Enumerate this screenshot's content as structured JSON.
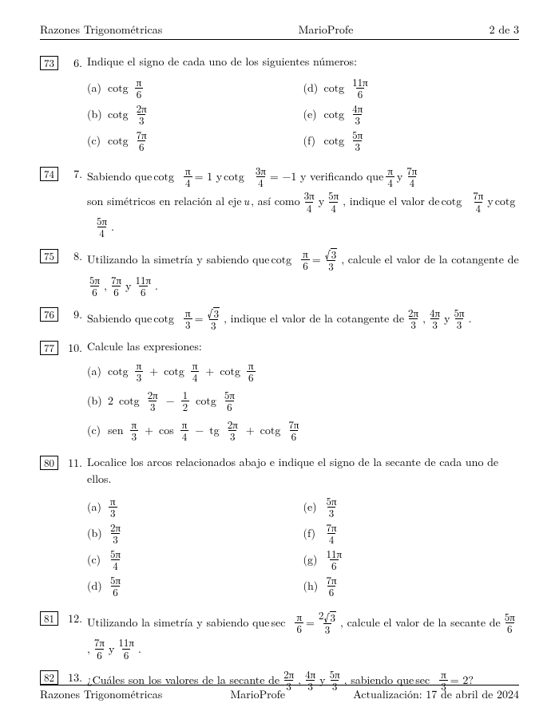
{
  "header": {
    "left": "Razones Trigonométricas",
    "center": "MarioProfe",
    "right": "2 de 3"
  },
  "footer": {
    "left": "Razones Trigonométricas",
    "center": "MarioProfe",
    "right": "Actualización: 17 de abril de 2024"
  },
  "labels": {
    "cotg": "cotg",
    "sec": "sec",
    "sen": "sen",
    "cos": "cos",
    "tg": "tg",
    "pi": "π"
  },
  "problems": [
    {
      "tag": "73",
      "num": "6.",
      "text_pre": "Indique el signo de cada uno de los siguientes números:",
      "cols": [
        [
          {
            "l": "(a)",
            "op": "cotg",
            "n": "π",
            "d": "6"
          },
          {
            "l": "(b)",
            "op": "cotg",
            "n": "2π",
            "d": "3"
          },
          {
            "l": "(c)",
            "op": "cotg",
            "n": "7π",
            "d": "6"
          }
        ],
        [
          {
            "l": "(d)",
            "op": "cotg",
            "n": "11π",
            "d": "6"
          },
          {
            "l": "(e)",
            "op": "cotg",
            "n": "4π",
            "d": "3"
          },
          {
            "l": "(f)",
            "op": "cotg",
            "n": "5π",
            "d": "3"
          }
        ]
      ]
    },
    {
      "tag": "74",
      "num": "7.",
      "parts": {
        "p1": "Sabiendo que ",
        "p2": " = 1 y ",
        "p3": " = −1 y verificando que ",
        "p4": " y ",
        "p5": " son simétricos en relación al eje ",
        "u": "u",
        "p6": ", así como ",
        "p7": " y ",
        "p8": ", indique el valor de ",
        "p9": " y ",
        "p10": "."
      },
      "fr": {
        "a": {
          "n": "π",
          "d": "4"
        },
        "b": {
          "n": "3π",
          "d": "4"
        },
        "c": {
          "n": "π",
          "d": "4"
        },
        "d": {
          "n": "7π",
          "d": "4"
        },
        "e": {
          "n": "3π",
          "d": "4"
        },
        "f": {
          "n": "5π",
          "d": "4"
        },
        "g": {
          "n": "7π",
          "d": "4"
        },
        "h": {
          "n": "5π",
          "d": "4"
        }
      }
    },
    {
      "tag": "75",
      "num": "8.",
      "parts": {
        "p1": "Utilizando la simetría y sabiendo que ",
        "p2": " = ",
        "p3": ", calcule el valor de la cotangente de ",
        "p4": ", ",
        "p5": " y ",
        "p6": "."
      },
      "f1": {
        "n": "π",
        "d": "6"
      },
      "rhs": {
        "sqrt": "3",
        "d": "3"
      },
      "list": [
        {
          "n": "5π",
          "d": "6"
        },
        {
          "n": "7π",
          "d": "6"
        },
        {
          "n": "11π",
          "d": "6"
        }
      ]
    },
    {
      "tag": "76",
      "num": "9.",
      "parts": {
        "p1": "Sabiendo que ",
        "p2": " = ",
        "p3": ", indique el valor de la cotangente de ",
        "p4": ", ",
        "p5": " y ",
        "p6": "."
      },
      "f1": {
        "n": "π",
        "d": "3"
      },
      "rhs": {
        "sqrt": "3",
        "d": "3"
      },
      "list": [
        {
          "n": "2π",
          "d": "3"
        },
        {
          "n": "4π",
          "d": "3"
        },
        {
          "n": "5π",
          "d": "3"
        }
      ]
    },
    {
      "tag": "77",
      "num": "10.",
      "text_pre": "Calcule las expresiones:",
      "subs": [
        {
          "l": "(a)",
          "expr": [
            [
              "cotg",
              "π",
              "3"
            ],
            [
              "+"
            ],
            [
              "cotg",
              "π",
              "4"
            ],
            [
              "+"
            ],
            [
              "cotg",
              "π",
              "6"
            ]
          ]
        },
        {
          "l": "(b)",
          "expr": [
            [
              "coef",
              "2"
            ],
            [
              "cotg",
              "2π",
              "3"
            ],
            [
              "−"
            ],
            [
              "frac",
              "1",
              "2"
            ],
            [
              "cotg",
              "5π",
              "6"
            ]
          ]
        },
        {
          "l": "(c)",
          "expr": [
            [
              "sen",
              "π",
              "3"
            ],
            [
              "+"
            ],
            [
              "cos",
              "π",
              "4"
            ],
            [
              "−"
            ],
            [
              "tg",
              "2π",
              "3"
            ],
            [
              "+"
            ],
            [
              "cotg",
              "7π",
              "6"
            ]
          ]
        }
      ]
    },
    {
      "tag": "80",
      "num": "11.",
      "text_pre": "Localice los arcos relacionados abajo e indique el signo de la secante de cada uno de ellos.",
      "cols": [
        [
          {
            "l": "(a)",
            "n": "π",
            "d": "3"
          },
          {
            "l": "(b)",
            "n": "2π",
            "d": "3"
          },
          {
            "l": "(c)",
            "n": "5π",
            "d": "4"
          },
          {
            "l": "(d)",
            "n": "5π",
            "d": "6"
          }
        ],
        [
          {
            "l": "(e)",
            "n": "5π",
            "d": "3"
          },
          {
            "l": "(f)",
            "n": "7π",
            "d": "4"
          },
          {
            "l": "(g)",
            "n": "11π",
            "d": "6"
          },
          {
            "l": "(h)",
            "n": "7π",
            "d": "6"
          }
        ]
      ]
    },
    {
      "tag": "81",
      "num": "12.",
      "parts": {
        "p1": "Utilizando la simetría y sabiendo que ",
        "p2": " = ",
        "p3": ", calcule el valor de la secante de ",
        "p4": ", ",
        "p5": " y ",
        "p6": "."
      },
      "op": "sec",
      "f1": {
        "n": "π",
        "d": "6"
      },
      "rhs": {
        "num_pre": "2",
        "sqrt": "3",
        "d": "3"
      },
      "list": [
        {
          "n": "5π",
          "d": "6"
        },
        {
          "n": "7π",
          "d": "6"
        },
        {
          "n": "11π",
          "d": "6"
        }
      ]
    },
    {
      "tag": "82",
      "num": "13.",
      "parts": {
        "p1": "¿Cuáles son los valores de la secante de ",
        "p2": ", ",
        "p3": " y ",
        "p4": ", sabiendo que ",
        "p5": " = 2?"
      },
      "list": [
        {
          "n": "2π",
          "d": "3"
        },
        {
          "n": "4π",
          "d": "3"
        },
        {
          "n": "5π",
          "d": "3"
        }
      ],
      "op": "sec",
      "f1": {
        "n": "π",
        "d": "3"
      }
    }
  ]
}
